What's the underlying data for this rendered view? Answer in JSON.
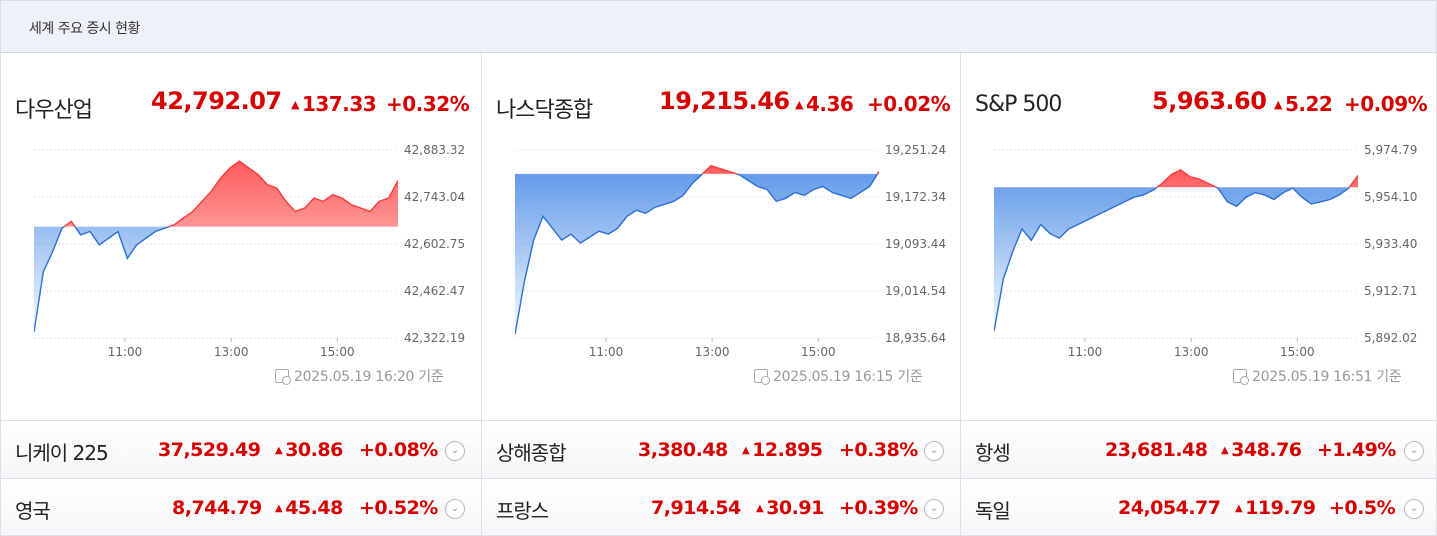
{
  "header": {
    "title": "세계 주요 증시 현황"
  },
  "colors": {
    "up": "#d60000",
    "line_up": "#ff3a3a",
    "line_down": "#2a6fd6",
    "fill_down": "#4a8ce6",
    "fill_up": "#ff4a4a"
  },
  "panels": [
    {
      "name": "다우산업",
      "price": "42,792.07",
      "change": "137.33",
      "pct": "+0.32%",
      "direction": "up",
      "timestamp": "2025.05.19 16:20 기준",
      "chart_data": {
        "type": "area",
        "y_ticks": [
          "42,883.32",
          "42,743.04",
          "42,602.75",
          "42,462.47",
          "42,322.19"
        ],
        "ylim": [
          42322.19,
          42883.32
        ],
        "x_ticks": [
          "11:00",
          "13:00",
          "15:00"
        ],
        "baseline": 42654.74,
        "x": [
          "09:30",
          "09:40",
          "09:50",
          "10:00",
          "10:10",
          "10:20",
          "10:30",
          "10:40",
          "10:50",
          "11:00",
          "11:10",
          "11:20",
          "11:30",
          "11:40",
          "11:50",
          "12:00",
          "12:10",
          "12:20",
          "12:30",
          "12:40",
          "12:50",
          "13:00",
          "13:10",
          "13:20",
          "13:30",
          "13:40",
          "13:50",
          "14:00",
          "14:10",
          "14:20",
          "14:30",
          "14:40",
          "14:50",
          "15:00",
          "15:10",
          "15:20",
          "15:30",
          "15:40",
          "15:50",
          "16:00"
        ],
        "values": [
          42340,
          42520,
          42580,
          42650,
          42670,
          42630,
          42640,
          42600,
          42620,
          42640,
          42560,
          42600,
          42620,
          42640,
          42650,
          42660,
          42680,
          42700,
          42730,
          42760,
          42800,
          42830,
          42850,
          42830,
          42810,
          42780,
          42770,
          42730,
          42700,
          42710,
          42740,
          42730,
          42750,
          42740,
          42720,
          42710,
          42700,
          42730,
          42740,
          42792
        ]
      }
    },
    {
      "name": "나스닥종합",
      "price": "19,215.46",
      "change": "4.36",
      "pct": "+0.02%",
      "direction": "up",
      "timestamp": "2025.05.19 16:15 기준",
      "chart_data": {
        "type": "area",
        "y_ticks": [
          "19,251.24",
          "19,172.34",
          "19,093.44",
          "19,014.54",
          "18,935.64"
        ],
        "ylim": [
          18935.64,
          19251.24
        ],
        "x_ticks": [
          "11:00",
          "13:00",
          "15:00"
        ],
        "baseline": 19211.1,
        "x": [
          "09:30",
          "09:40",
          "09:50",
          "10:00",
          "10:10",
          "10:20",
          "10:30",
          "10:40",
          "10:50",
          "11:00",
          "11:10",
          "11:20",
          "11:30",
          "11:40",
          "11:50",
          "12:00",
          "12:10",
          "12:20",
          "12:30",
          "12:40",
          "12:50",
          "13:00",
          "13:10",
          "13:20",
          "13:30",
          "13:40",
          "13:50",
          "14:00",
          "14:10",
          "14:20",
          "14:30",
          "14:40",
          "14:50",
          "15:00",
          "15:10",
          "15:20",
          "15:30",
          "15:40",
          "15:50",
          "16:00"
        ],
        "values": [
          18942,
          19030,
          19100,
          19140,
          19120,
          19100,
          19110,
          19095,
          19105,
          19115,
          19110,
          19120,
          19140,
          19150,
          19145,
          19155,
          19160,
          19165,
          19175,
          19195,
          19210,
          19225,
          19220,
          19215,
          19210,
          19200,
          19190,
          19185,
          19165,
          19170,
          19180,
          19175,
          19185,
          19190,
          19180,
          19175,
          19170,
          19180,
          19190,
          19215
        ]
      }
    },
    {
      "name": "S&P 500",
      "price": "5,963.60",
      "change": "5.22",
      "pct": "+0.09%",
      "direction": "up",
      "timestamp": "2025.05.19 16:51 기준",
      "chart_data": {
        "type": "area",
        "y_ticks": [
          "5,974.79",
          "5,954.10",
          "5,933.40",
          "5,912.71",
          "5,892.02"
        ],
        "ylim": [
          5892.02,
          5974.79
        ],
        "x_ticks": [
          "11:00",
          "13:00",
          "15:00"
        ],
        "baseline": 5958.38,
        "x": [
          "09:30",
          "09:40",
          "09:50",
          "10:00",
          "10:10",
          "10:20",
          "10:30",
          "10:40",
          "10:50",
          "11:00",
          "11:10",
          "11:20",
          "11:30",
          "11:40",
          "11:50",
          "12:00",
          "12:10",
          "12:20",
          "12:30",
          "12:40",
          "12:50",
          "13:00",
          "13:10",
          "13:20",
          "13:30",
          "13:40",
          "13:50",
          "14:00",
          "14:10",
          "14:20",
          "14:30",
          "14:40",
          "14:50",
          "15:00",
          "15:10",
          "15:20",
          "15:30",
          "15:40",
          "15:50",
          "16:00"
        ],
        "values": [
          5895,
          5918,
          5930,
          5940,
          5935,
          5942,
          5938,
          5936,
          5940,
          5942,
          5944,
          5946,
          5948,
          5950,
          5952,
          5954,
          5955,
          5957,
          5960,
          5964,
          5966,
          5963,
          5962,
          5960,
          5958,
          5952,
          5950,
          5954,
          5956,
          5955,
          5953,
          5956,
          5958,
          5954,
          5951,
          5952,
          5953,
          5955,
          5958,
          5963.6
        ]
      }
    }
  ],
  "rows": [
    [
      {
        "name": "니케이 225",
        "price": "37,529.49",
        "change": "30.86",
        "pct": "+0.08%"
      },
      {
        "name": "상해종합",
        "price": "3,380.48",
        "change": "12.895",
        "pct": "+0.38%"
      },
      {
        "name": "항셍",
        "price": "23,681.48",
        "change": "348.76",
        "pct": "+1.49%"
      }
    ],
    [
      {
        "name": "영국",
        "price": "8,744.79",
        "change": "45.48",
        "pct": "+0.52%"
      },
      {
        "name": "프랑스",
        "price": "7,914.54",
        "change": "30.91",
        "pct": "+0.39%"
      },
      {
        "name": "독일",
        "price": "24,054.77",
        "change": "119.79",
        "pct": "+0.5%"
      }
    ]
  ]
}
